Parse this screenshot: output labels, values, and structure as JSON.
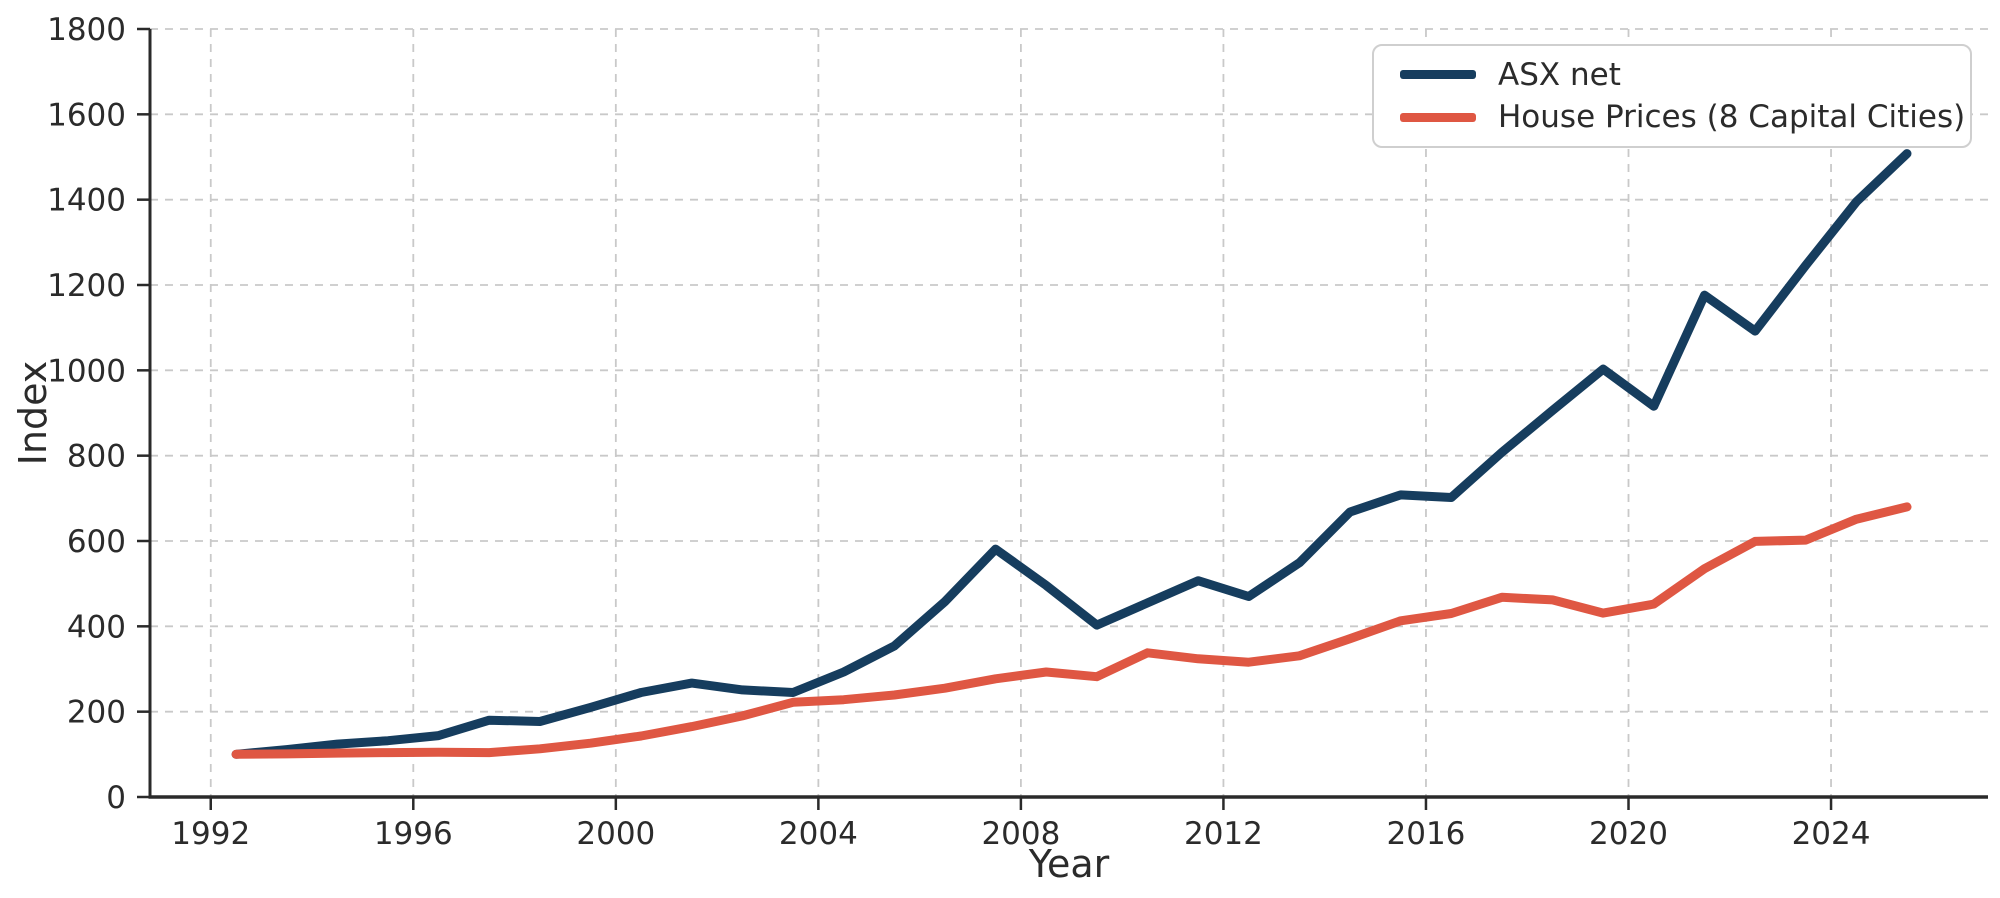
{
  "chart_data": {
    "type": "line",
    "title": "",
    "xlabel": "Year",
    "ylabel": "Index",
    "x": [
      1992.5,
      1993.5,
      1994.5,
      1995.5,
      1996.5,
      1997.5,
      1998.5,
      1999.5,
      2000.5,
      2001.5,
      2002.5,
      2003.5,
      2004.5,
      2005.5,
      2006.5,
      2007.5,
      2008.5,
      2009.5,
      2010.5,
      2011.5,
      2012.5,
      2013.5,
      2014.5,
      2015.5,
      2016.5,
      2017.5,
      2018.5,
      2019.5,
      2020.5,
      2021.5,
      2022.5,
      2023.5,
      2024.5,
      2025.5
    ],
    "series": [
      {
        "name": "ASX net",
        "color": "#163d5e",
        "values": [
          100,
          111,
          124,
          132,
          144,
          180,
          177,
          210,
          245,
          267,
          251,
          245,
          293,
          354,
          458,
          581,
          496,
          403,
          455,
          507,
          470,
          549,
          668,
          708,
          702,
          808,
          906,
          1003,
          916,
          1176,
          1092,
          1246,
          1395,
          1508
        ]
      },
      {
        "name": "House Prices (8 Capital Cities)",
        "color": "#df5743",
        "values": [
          100,
          101,
          103,
          104,
          105,
          104,
          113,
          126,
          143,
          165,
          190,
          222,
          228,
          239,
          255,
          277,
          293,
          282,
          338,
          324,
          316,
          331,
          371,
          413,
          430,
          468,
          462,
          431,
          452,
          535,
          599,
          602,
          651,
          680
        ]
      }
    ],
    "xlim": [
      1990.8,
      2027.1
    ],
    "ylim": [
      0,
      1800
    ],
    "xticks": [
      1992,
      1996,
      2000,
      2004,
      2008,
      2012,
      2016,
      2020,
      2024
    ],
    "yticks": [
      0,
      200,
      400,
      600,
      800,
      1000,
      1200,
      1400,
      1600,
      1800
    ],
    "grid": "dashed",
    "legend_position": "upper right",
    "colors": {
      "grid": "#c9c9c9",
      "spine": "#2a2a2a",
      "tick_text": "#2b2b2b",
      "background": "#ffffff"
    }
  }
}
